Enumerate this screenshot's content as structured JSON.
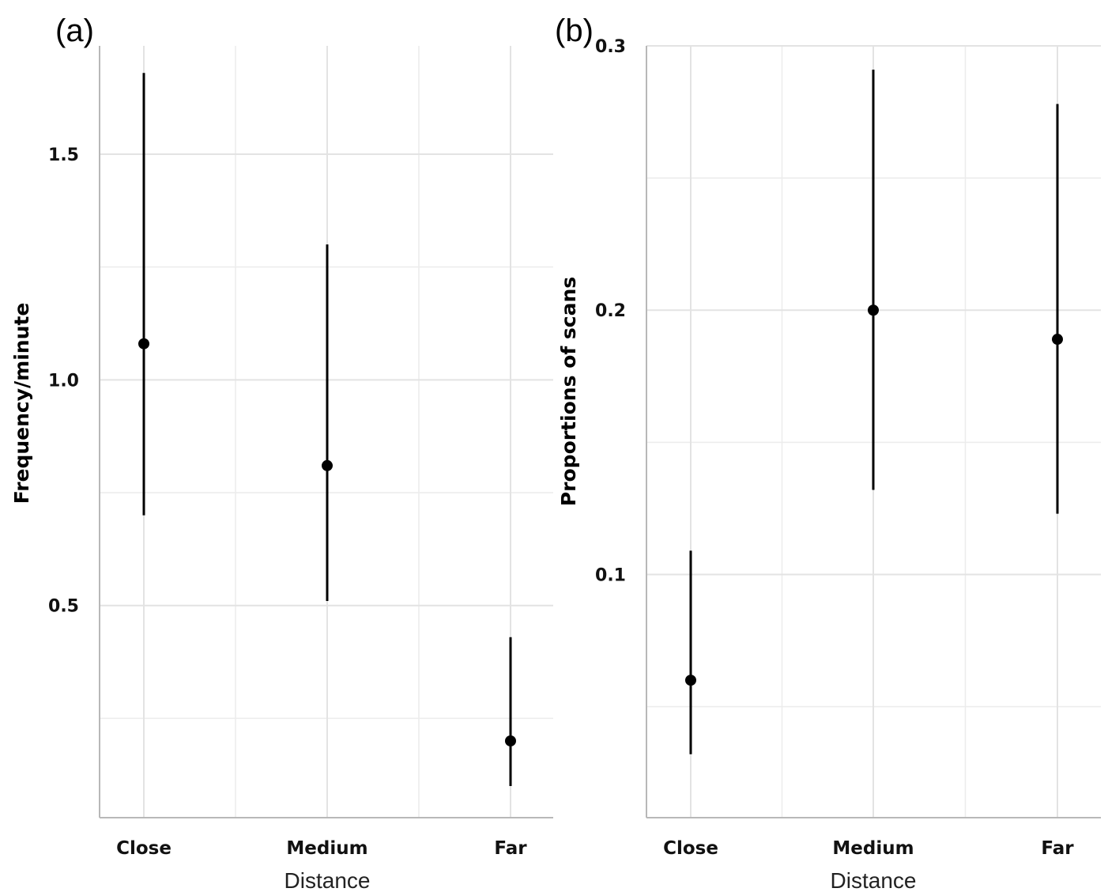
{
  "chart_data": [
    {
      "panel_label": "(a)",
      "type": "errorbar",
      "categories": [
        "Close",
        "Medium",
        "Far"
      ],
      "values": [
        1.08,
        0.81,
        0.2
      ],
      "lower": [
        0.7,
        0.51,
        0.1
      ],
      "upper": [
        1.68,
        1.3,
        0.43
      ],
      "ylabel": "Frequency/minute",
      "xlabel": "Distance",
      "ylim": [
        0.03,
        1.74
      ],
      "yticks": [
        0.5,
        1.0,
        1.5
      ],
      "ytick_labels": [
        "0.5",
        "1.0",
        "1.5"
      ],
      "grid": true
    },
    {
      "panel_label": "(b)",
      "type": "errorbar",
      "categories": [
        "Close",
        "Medium",
        "Far"
      ],
      "values": [
        0.06,
        0.2,
        0.189
      ],
      "lower": [
        0.032,
        0.132,
        0.123
      ],
      "upper": [
        0.109,
        0.291,
        0.278
      ],
      "ylabel": "Proportions of scans",
      "xlabel": "Distance",
      "ylim": [
        0.008,
        0.3
      ],
      "yticks": [
        0.1,
        0.2,
        0.3
      ],
      "ytick_labels": [
        "0.1",
        "0.2",
        "0.3"
      ],
      "grid": true
    }
  ]
}
